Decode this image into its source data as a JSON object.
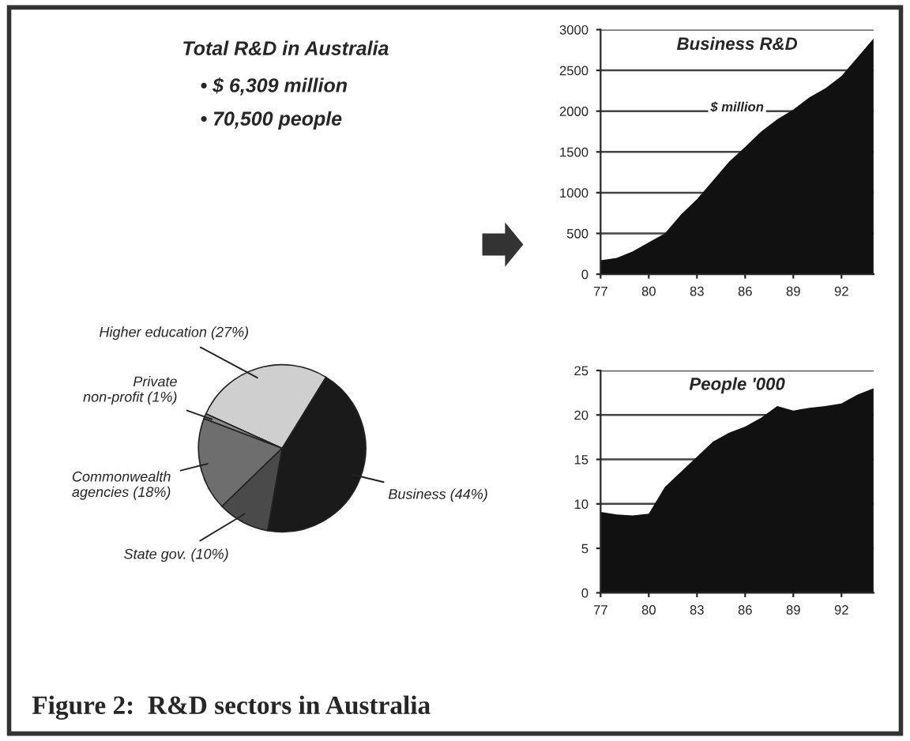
{
  "chart_data": [
    {
      "type": "pie",
      "title": "Total R&D in Australia",
      "annotations": [
        "• $ 6,309 million",
        "• 70,500 people",
        "Figure 2:  R&D sectors in Australia"
      ],
      "categories": [
        "Business (44%)",
        "Higher education (27%)",
        "Private\nnon-profit (1%)",
        "Commonwealth\nagencies (18%)",
        "State gov. (10%)"
      ],
      "values": [
        44,
        27,
        1,
        18,
        10
      ],
      "colors": [
        "#1a1a1a",
        "#cfcfcf",
        "#8a8a8a",
        "#6e6e6e",
        "#4a4a4a"
      ]
    },
    {
      "type": "area",
      "title": "Business R&D",
      "annotations": [
        "$ million"
      ],
      "x": [
        77,
        78,
        79,
        80,
        81,
        82,
        83,
        84,
        85,
        86,
        87,
        88,
        89,
        90,
        91,
        92,
        93,
        94
      ],
      "series": [
        {
          "color": "#111111",
          "values": [
            170,
            200,
            280,
            390,
            500,
            730,
            920,
            1150,
            1380,
            1560,
            1750,
            1900,
            2020,
            2170,
            2280,
            2430,
            2660,
            2890
          ]
        }
      ],
      "xlim": [
        77,
        94
      ],
      "xticks": [
        77,
        80,
        83,
        86,
        89,
        92
      ],
      "ylim": [
        0,
        3000
      ],
      "yticks": [
        0,
        500,
        1000,
        1500,
        2000,
        2500,
        3000
      ],
      "grid": "y"
    },
    {
      "type": "area",
      "title": "People '000",
      "x": [
        77,
        78,
        79,
        80,
        81,
        82,
        83,
        84,
        85,
        86,
        87,
        88,
        89,
        90,
        91,
        92,
        93,
        94
      ],
      "series": [
        {
          "color": "#111111",
          "values": [
            9.1,
            8.8,
            8.7,
            8.9,
            11.9,
            13.6,
            15.3,
            17.0,
            18.0,
            18.7,
            19.7,
            21.0,
            20.5,
            20.8,
            21.0,
            21.3,
            22.3,
            23.0
          ]
        }
      ],
      "xlim": [
        77,
        94
      ],
      "xticks": [
        77,
        80,
        83,
        86,
        89,
        92
      ],
      "ylim": [
        0,
        25
      ],
      "yticks": [
        0,
        5,
        10,
        15,
        20,
        25
      ],
      "grid": "y"
    }
  ]
}
